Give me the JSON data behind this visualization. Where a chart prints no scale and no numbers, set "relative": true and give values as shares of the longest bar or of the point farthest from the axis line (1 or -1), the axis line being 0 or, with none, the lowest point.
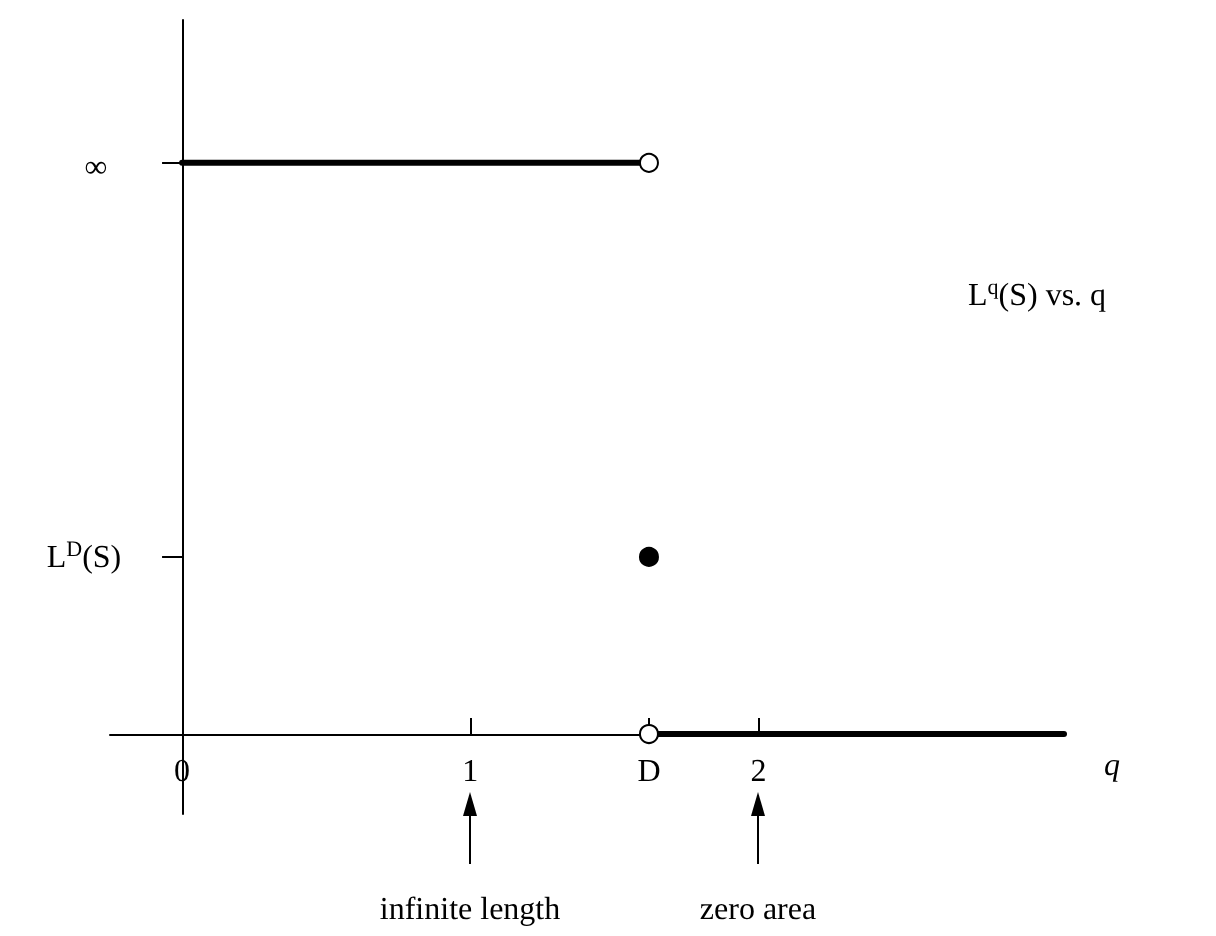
{
  "chart_data": {
    "type": "line",
    "relative": true,
    "xlabel": "q",
    "xlim": [
      -0.25,
      3.06
    ],
    "xticks": [
      0,
      1,
      {
        "value": 1.62,
        "label": "D"
      },
      2
    ],
    "grid": false,
    "line_style": "solid",
    "series": [
      {
        "color": "#000000",
        "x": [
          0,
          1.62
        ],
        "values": [
          1,
          1
        ]
      },
      {
        "color": "#000000",
        "x": [
          1.62,
          3.06
        ],
        "values": [
          0,
          0
        ]
      },
      {
        "type": "scatter",
        "marker": "circle",
        "color": "#000000",
        "x": [
          1.62
        ],
        "values": [
          0.31
        ]
      },
      {
        "type": "scatter",
        "marker": "circle",
        "color": "#ffffff",
        "x": [
          1.62,
          1.62
        ],
        "values": [
          1,
          0
        ]
      }
    ],
    "annotations": [
      "∞",
      "L$^{D}$(S)",
      "L$^{q}$(S) vs. q",
      "infinite length",
      "zero area"
    ]
  }
}
